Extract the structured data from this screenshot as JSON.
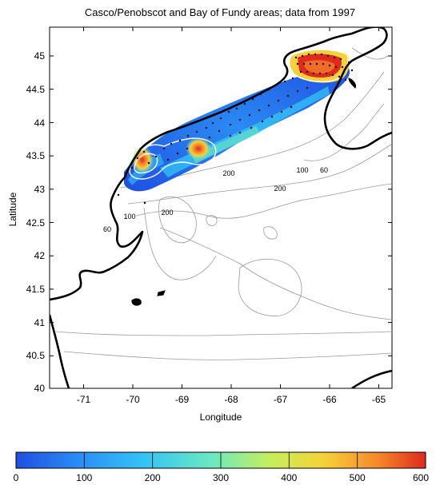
{
  "title": "Casco/Penobscot and Bay of Fundy areas; data from 1997",
  "xlabel": "Longitude",
  "ylabel": "Latitude",
  "x_ticks": [
    "-71",
    "-70",
    "-69",
    "-68",
    "-67",
    "-66",
    "-65"
  ],
  "y_ticks": [
    "45",
    "44.5",
    "44",
    "43.5",
    "43",
    "42.5",
    "42",
    "41.5",
    "41",
    "40.5",
    "40"
  ],
  "xlim": [
    -71.8,
    -64.8
  ],
  "ylim": [
    40,
    45.4
  ],
  "contour_labels": [
    {
      "text": "200",
      "lon": -68.5,
      "lat": 43.22
    },
    {
      "text": "100",
      "lon": -66.85,
      "lat": 43.28
    },
    {
      "text": "60",
      "lon": -66.5,
      "lat": 43.28
    },
    {
      "text": "200",
      "lon": -67.0,
      "lat": 43.0
    },
    {
      "text": "200",
      "lon": -69.5,
      "lat": 42.7
    },
    {
      "text": "100",
      "lon": -70.2,
      "lat": 42.6
    },
    {
      "text": "60",
      "lon": -70.5,
      "lat": 42.4
    }
  ],
  "colorbar": {
    "ticks": [
      "0",
      "100",
      "200",
      "300",
      "400",
      "500",
      "600"
    ],
    "colors": [
      "#1f4fe0",
      "#2a8cf5",
      "#35c6f5",
      "#6ee8c0",
      "#c4ef5a",
      "#f5d23a",
      "#f58a2a",
      "#e02a1e"
    ]
  }
}
